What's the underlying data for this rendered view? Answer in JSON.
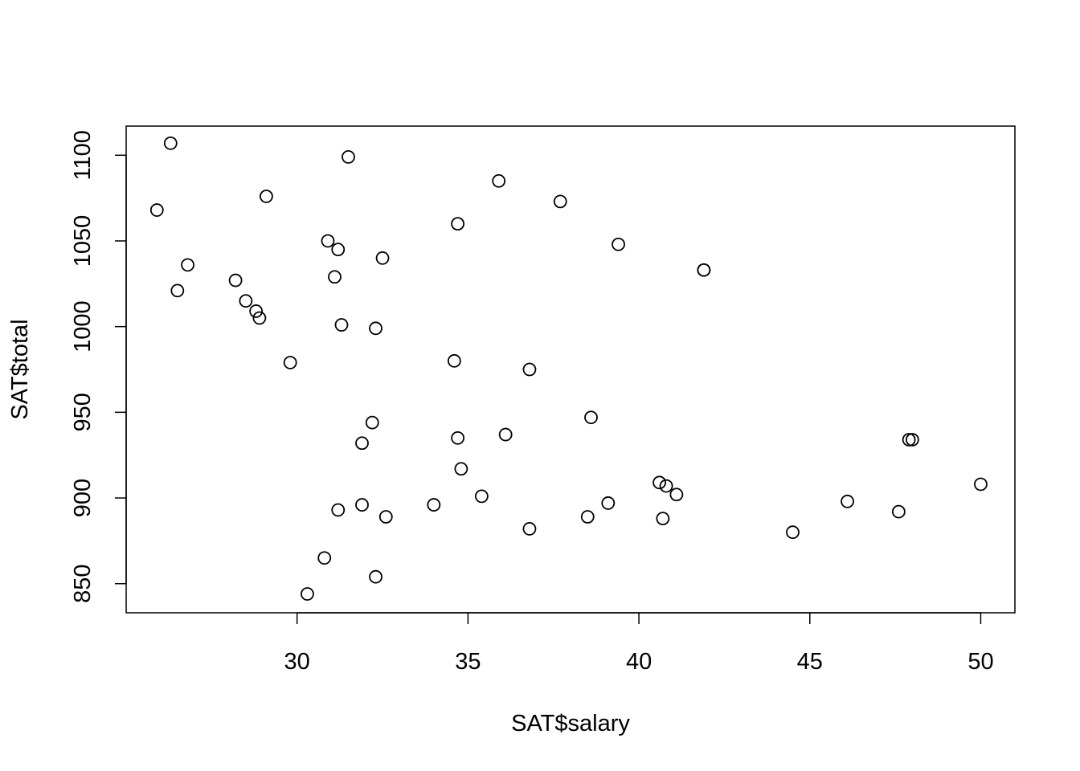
{
  "chart_data": {
    "type": "scatter",
    "title": "",
    "xlabel": "SAT$salary",
    "ylabel": "SAT$total",
    "xlim": [
      25.0,
      51.0
    ],
    "ylim": [
      833,
      1117
    ],
    "x_ticks": [
      30,
      35,
      40,
      45,
      50
    ],
    "y_ticks": [
      850,
      900,
      950,
      1000,
      1050,
      1100
    ],
    "x_tick_labels": [
      "30",
      "35",
      "40",
      "45",
      "50"
    ],
    "y_tick_labels": [
      "850",
      "900",
      "950",
      "1000",
      "1050",
      "1100"
    ],
    "grid": false,
    "legend": "none",
    "marker": "open-circle",
    "colors": {
      "marker": "#000000",
      "axis": "#000000",
      "background": "#ffffff"
    },
    "points": [
      {
        "x": 31.1,
        "y": 1029
      },
      {
        "x": 47.9,
        "y": 934
      },
      {
        "x": 32.2,
        "y": 944
      },
      {
        "x": 28.9,
        "y": 1005
      },
      {
        "x": 41.1,
        "y": 902
      },
      {
        "x": 34.6,
        "y": 980
      },
      {
        "x": 50.0,
        "y": 908
      },
      {
        "x": 39.1,
        "y": 897
      },
      {
        "x": 32.6,
        "y": 889
      },
      {
        "x": 32.3,
        "y": 854
      },
      {
        "x": 38.5,
        "y": 889
      },
      {
        "x": 29.8,
        "y": 979
      },
      {
        "x": 39.4,
        "y": 1048
      },
      {
        "x": 35.4,
        "y": 901
      },
      {
        "x": 31.5,
        "y": 1099
      },
      {
        "x": 34.7,
        "y": 1060
      },
      {
        "x": 32.3,
        "y": 999
      },
      {
        "x": 26.5,
        "y": 1021
      },
      {
        "x": 31.9,
        "y": 896
      },
      {
        "x": 41.9,
        "y": 1033
      },
      {
        "x": 40.8,
        "y": 907
      },
      {
        "x": 41.9,
        "y": 1033
      },
      {
        "x": 35.9,
        "y": 1085
      },
      {
        "x": 26.8,
        "y": 1036
      },
      {
        "x": 31.2,
        "y": 1045
      },
      {
        "x": 28.8,
        "y": 1009
      },
      {
        "x": 30.9,
        "y": 1050
      },
      {
        "x": 34.8,
        "y": 917
      },
      {
        "x": 34.7,
        "y": 935
      },
      {
        "x": 46.1,
        "y": 898
      },
      {
        "x": 28.5,
        "y": 1015
      },
      {
        "x": 48.0,
        "y": 934
      },
      {
        "x": 30.8,
        "y": 865
      },
      {
        "x": 26.3,
        "y": 1107
      },
      {
        "x": 36.8,
        "y": 975
      },
      {
        "x": 28.2,
        "y": 1027
      },
      {
        "x": 38.6,
        "y": 947
      },
      {
        "x": 44.5,
        "y": 880
      },
      {
        "x": 40.7,
        "y": 888
      },
      {
        "x": 30.3,
        "y": 844
      },
      {
        "x": 25.9,
        "y": 1068
      },
      {
        "x": 32.5,
        "y": 1040
      },
      {
        "x": 31.2,
        "y": 893
      },
      {
        "x": 29.1,
        "y": 1076
      },
      {
        "x": 34.0,
        "y": 896
      },
      {
        "x": 36.1,
        "y": 937
      },
      {
        "x": 37.7,
        "y": 1073
      },
      {
        "x": 40.6,
        "y": 909
      },
      {
        "x": 31.9,
        "y": 932
      },
      {
        "x": 36.8,
        "y": 882
      },
      {
        "x": 31.3,
        "y": 1001
      },
      {
        "x": 47.6,
        "y": 892
      }
    ]
  }
}
